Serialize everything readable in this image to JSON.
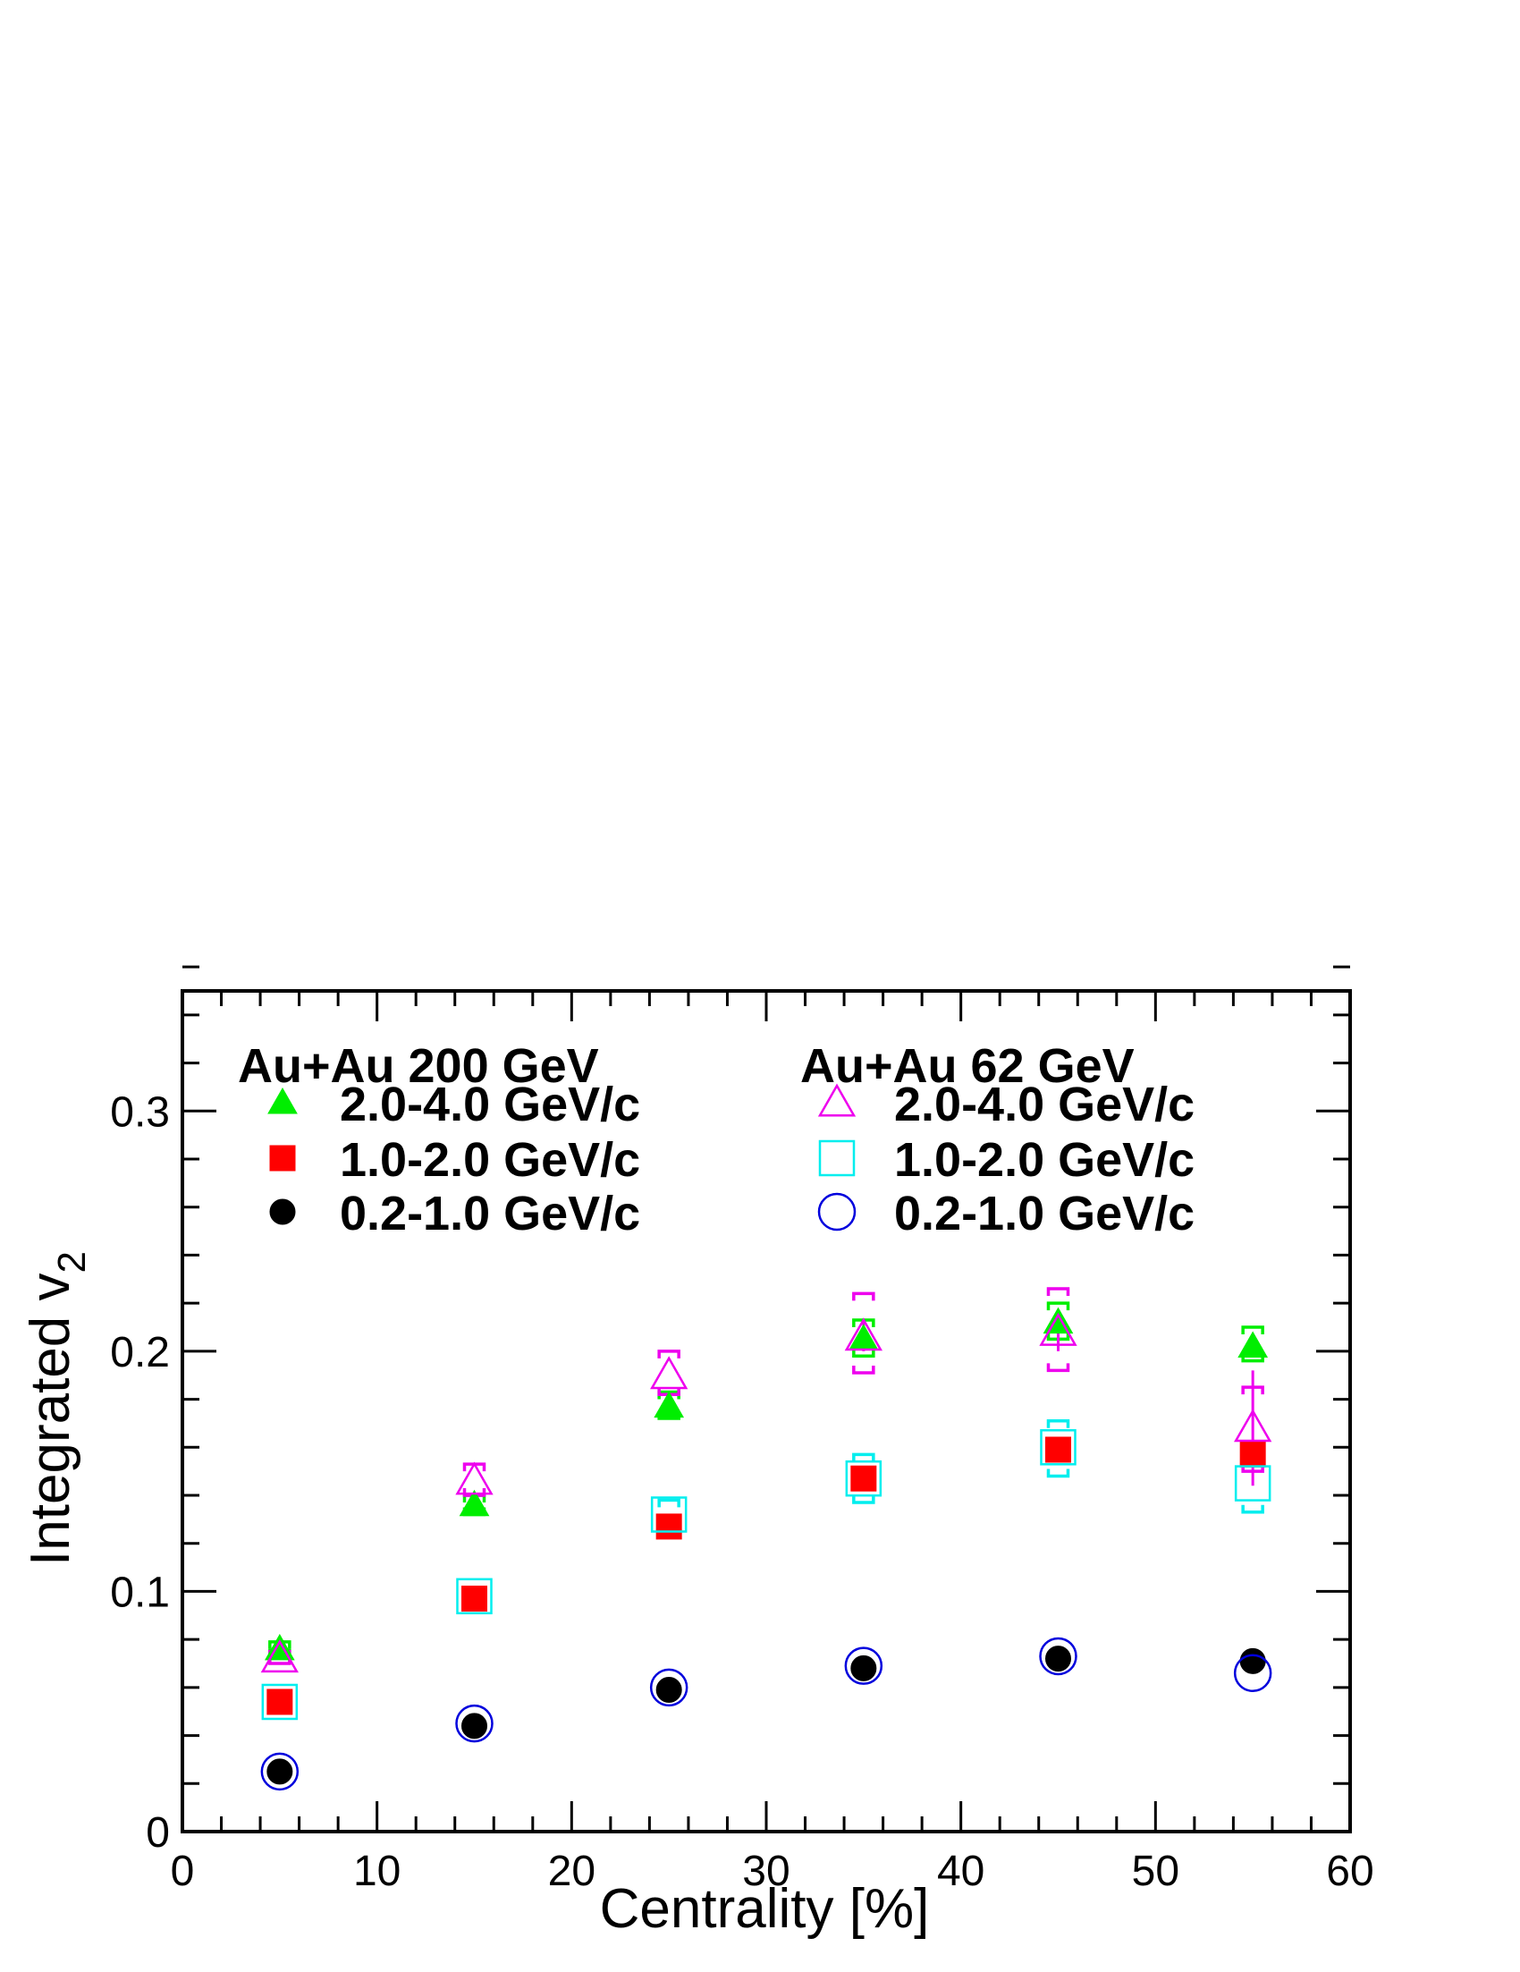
{
  "chart_data": {
    "type": "scatter",
    "xlabel": "Centrality [%]",
    "ylabel": "Integrated v",
    "ylabel_subscript": "2",
    "xlim": [
      0,
      60
    ],
    "ylim": [
      0,
      0.35
    ],
    "x_major_ticks": [
      0,
      10,
      20,
      30,
      40,
      50,
      60
    ],
    "x_tick_labels": [
      "0",
      "10",
      "20",
      "30",
      "40",
      "50",
      "60"
    ],
    "x_minor_step": 2,
    "y_major_ticks": [
      0,
      0.1,
      0.2,
      0.3
    ],
    "y_tick_labels": [
      "0",
      "0.1",
      "0.2",
      "0.3"
    ],
    "y_minor_step": 0.02,
    "grid": false,
    "legend_placement": "top",
    "legend_groups": [
      {
        "title": "Au+Au 200 GeV",
        "series_indices": [
          0,
          1,
          2
        ]
      },
      {
        "title": "Au+Au 62 GeV",
        "series_indices": [
          3,
          4,
          5
        ]
      }
    ],
    "series": [
      {
        "name": "2.0-4.0 GeV/c",
        "group": "Au+Au 200 GeV",
        "marker": "triangle-filled",
        "color": "#00ee00",
        "x": [
          5,
          15,
          25,
          35,
          45,
          55
        ],
        "y": [
          0.076,
          0.136,
          0.177,
          0.205,
          0.212,
          0.202
        ],
        "sys_low": [
          0.073,
          0.132,
          0.172,
          0.198,
          0.205,
          0.196
        ],
        "sys_high": [
          0.079,
          0.14,
          0.183,
          0.213,
          0.22,
          0.21
        ]
      },
      {
        "name": "1.0-2.0 GeV/c",
        "group": "Au+Au 200 GeV",
        "marker": "square-filled",
        "color": "#ff0000",
        "x": [
          5,
          15,
          25,
          35,
          45,
          55
        ],
        "y": [
          0.054,
          0.097,
          0.127,
          0.147,
          0.159,
          0.157
        ]
      },
      {
        "name": "0.2-1.0 GeV/c",
        "group": "Au+Au 200 GeV",
        "marker": "circle-filled",
        "color": "#000000",
        "x": [
          5,
          15,
          25,
          35,
          45,
          55
        ],
        "y": [
          0.025,
          0.044,
          0.059,
          0.068,
          0.072,
          0.071
        ]
      },
      {
        "name": "2.0-4.0 GeV/c",
        "group": "Au+Au 62 GeV",
        "marker": "triangle-open",
        "color": "#ee00ee",
        "x": [
          5,
          15,
          25,
          35,
          45,
          55
        ],
        "y": [
          0.072,
          0.146,
          0.19,
          0.206,
          0.208,
          0.168
        ],
        "err": [
          0.002,
          0.003,
          0.004,
          0.006,
          0.008,
          0.024
        ],
        "sys_low": [
          0.07,
          0.14,
          0.182,
          0.191,
          0.192,
          0.15
        ],
        "sys_high": [
          0.075,
          0.153,
          0.2,
          0.224,
          0.226,
          0.185
        ]
      },
      {
        "name": "1.0-2.0 GeV/c",
        "group": "Au+Au 62 GeV",
        "marker": "square-open",
        "color": "#00eeee",
        "x": [
          5,
          15,
          25,
          35,
          45,
          55
        ],
        "y": [
          0.054,
          0.098,
          0.132,
          0.147,
          0.16,
          0.145
        ],
        "sys_low": [
          0.052,
          0.095,
          0.126,
          0.137,
          0.148,
          0.133
        ],
        "sys_high": [
          0.056,
          0.101,
          0.138,
          0.157,
          0.171,
          0.16
        ]
      },
      {
        "name": "0.2-1.0 GeV/c",
        "group": "Au+Au 62 GeV",
        "marker": "circle-open",
        "color": "#0000dd",
        "x": [
          5,
          15,
          25,
          35,
          45,
          55
        ],
        "y": [
          0.025,
          0.045,
          0.06,
          0.069,
          0.073,
          0.066
        ]
      }
    ]
  }
}
